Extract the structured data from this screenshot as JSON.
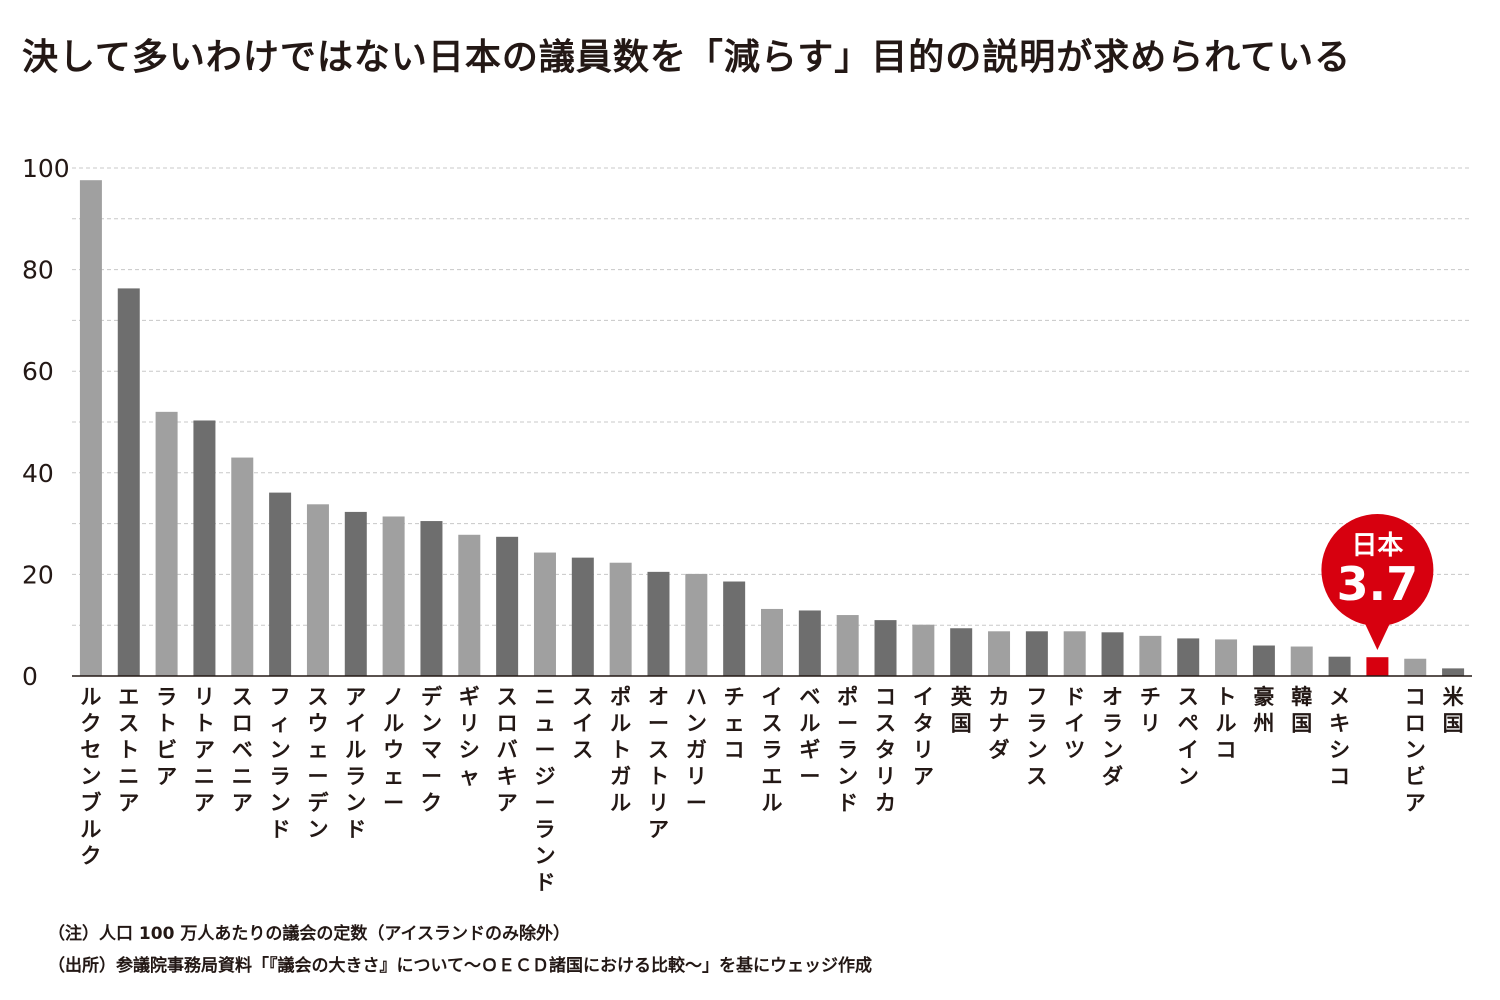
{
  "title": "決して多いわけではない日本の議員数を「減らす」目的の説明が求められている",
  "chart_data": {
    "type": "bar",
    "categories": [
      "ルクセンブルク",
      "エストニア",
      "ラトビア",
      "リトアニア",
      "スロベニア",
      "フィンランド",
      "スウェーデン",
      "アイルランド",
      "ノルウェー",
      "デンマーク",
      "ギリシャ",
      "スロバキア",
      "ニュージーランド",
      "スイス",
      "ポルトガル",
      "オーストリア",
      "ハンガリー",
      "チェコ",
      "イスラエル",
      "ベルギー",
      "ポーランド",
      "コスタリカ",
      "イタリア",
      "英国",
      "カナダ",
      "フランス",
      "ドイツ",
      "オランダ",
      "チリ",
      "スペイン",
      "トルコ",
      "豪州",
      "韓国",
      "メキシコ",
      "日本",
      "コロンビア",
      "米国"
    ],
    "values": [
      97.6,
      76.3,
      52.0,
      50.3,
      43.0,
      36.1,
      33.8,
      32.3,
      31.4,
      30.5,
      27.8,
      27.4,
      24.3,
      23.3,
      22.3,
      20.5,
      20.1,
      18.6,
      13.2,
      12.9,
      12.0,
      11.0,
      10.1,
      9.4,
      8.8,
      8.8,
      8.8,
      8.6,
      7.9,
      7.4,
      7.2,
      6.0,
      5.8,
      3.8,
      3.7,
      3.4,
      1.5
    ],
    "highlight": "日本",
    "highlight_label": "日本",
    "highlight_value_label": "3.7",
    "yticks": [
      0,
      20,
      40,
      60,
      80,
      100
    ],
    "ylim": [
      0,
      100
    ],
    "grid": true,
    "colors": {
      "light": "#a0a0a0",
      "dark": "#6e6e6e",
      "highlight": "#d7000f",
      "grid": "#c8c8c8"
    }
  },
  "notes": {
    "note": "（注）人口 100 万人あたりの議会の定数（アイスランドのみ除外）",
    "source": "（出所）参議院事務局資料「『議会の大きさ』について〜ＯＥＣＤ諸国における比較〜」を基にウェッジ作成"
  }
}
